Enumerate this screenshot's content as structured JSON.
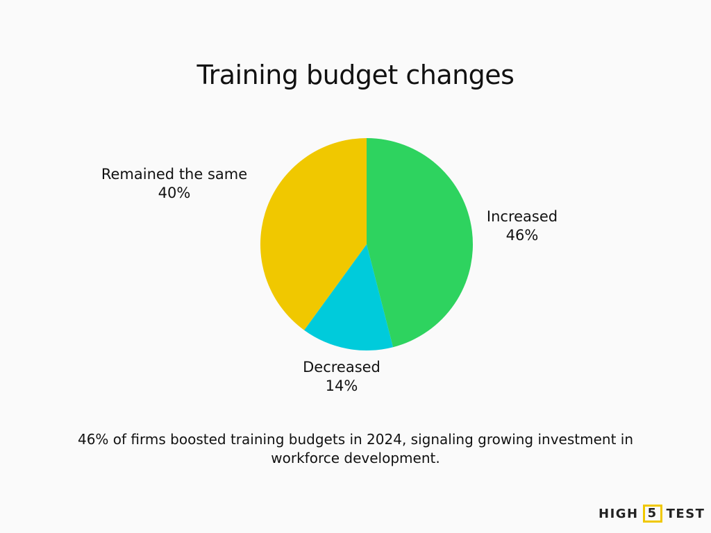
{
  "chart_data": {
    "type": "pie",
    "title": "Training budget changes",
    "slices": [
      {
        "label": "Increased",
        "value": 46,
        "display": "46%",
        "color": "#2ed35f"
      },
      {
        "label": "Decreased",
        "value": 14,
        "display": "14%",
        "color": "#00cbdb"
      },
      {
        "label": "Remained the same",
        "value": 40,
        "display": "40%",
        "color": "#f0c800"
      }
    ],
    "start": "top",
    "direction": "clockwise"
  },
  "caption": "46% of firms boosted training budgets in 2024, signaling growing investment in workforce development.",
  "logo": {
    "left": "HIGH",
    "box": "5",
    "right": "TEST",
    "accent": "#f0c800"
  }
}
